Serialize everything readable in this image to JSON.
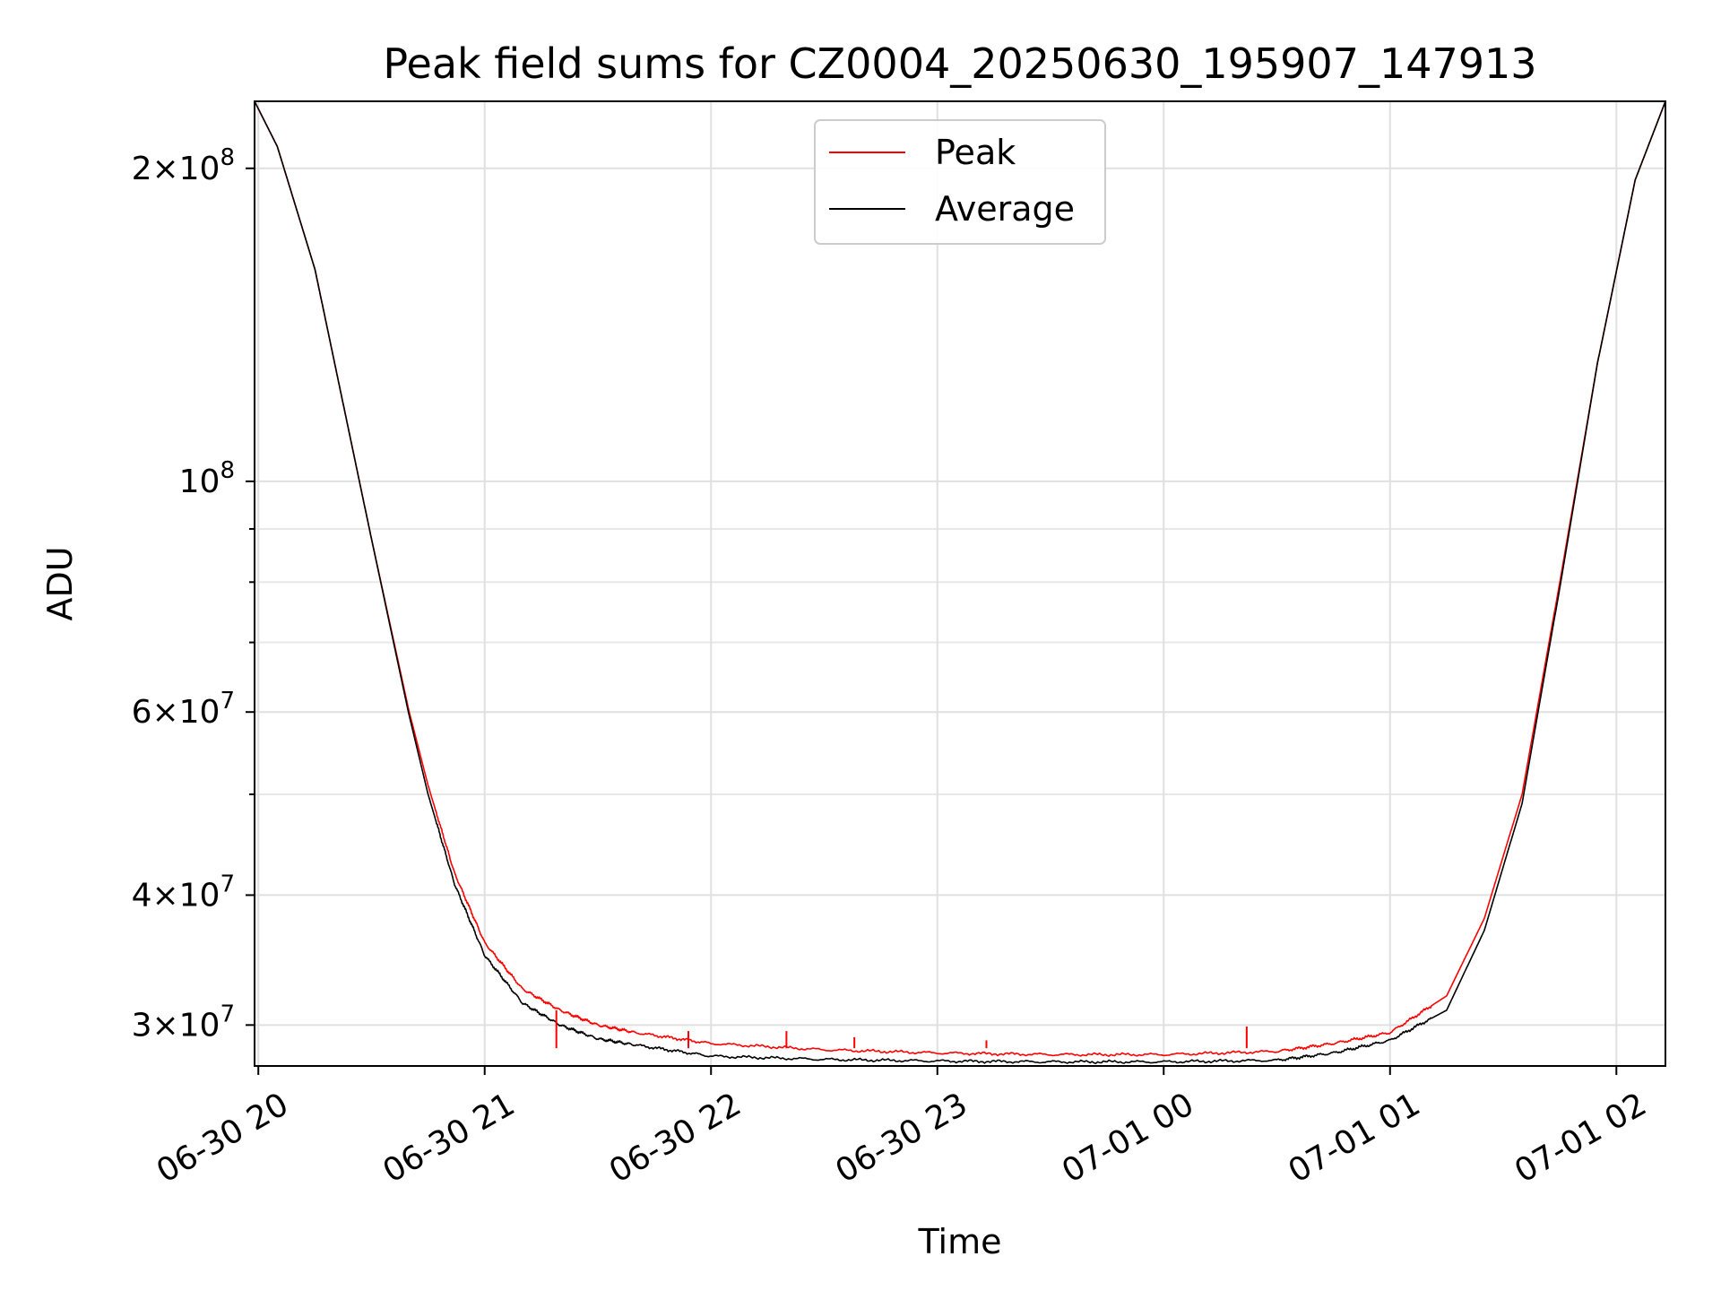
{
  "chart_data": {
    "type": "line",
    "title": "Peak field sums for CZ0004_20250630_195907_147913",
    "xlabel": "Time",
    "ylabel": "ADU",
    "yscale": "log",
    "grid": true,
    "legend_position": "top-center",
    "x_start": "2025-06-30 19:59",
    "x_end": "2025-07-01 02:13",
    "xlim": [
      "06-30 19:59",
      "07-01 02:13"
    ],
    "ylim": [
      27400000,
      232000000
    ],
    "x_ticks": [
      "06-30 20",
      "06-30 21",
      "06-30 22",
      "06-30 23",
      "07-01 00",
      "07-01 01",
      "07-01 02"
    ],
    "y_ticks": [
      {
        "value": 200000000,
        "base": "2×10",
        "exp": "8"
      },
      {
        "value": 100000000,
        "base": "10",
        "exp": "8"
      },
      {
        "value": 60000000,
        "base": "6×10",
        "exp": "7"
      },
      {
        "value": 40000000,
        "base": "4×10",
        "exp": "7"
      },
      {
        "value": 30000000,
        "base": "3×10",
        "exp": "7"
      }
    ],
    "y_minor_ticks": [
      90000000,
      80000000,
      70000000,
      50000000
    ],
    "x_hours": [
      "2025-06-30 19:59",
      "2025-06-30 20:05",
      "2025-06-30 20:15",
      "2025-06-30 20:30",
      "2025-06-30 20:40",
      "2025-06-30 20:45",
      "2025-06-30 20:52",
      "2025-06-30 21:00",
      "2025-06-30 21:10",
      "2025-06-30 21:20",
      "2025-06-30 21:30",
      "2025-06-30 21:40",
      "2025-06-30 22:00",
      "2025-06-30 22:30",
      "2025-06-30 23:00",
      "2025-06-30 23:30",
      "2025-07-01 00:00",
      "2025-07-01 00:30",
      "2025-07-01 00:45",
      "2025-07-01 01:00",
      "2025-07-01 01:15",
      "2025-07-01 01:25",
      "2025-07-01 01:35",
      "2025-07-01 01:45",
      "2025-07-01 01:55",
      "2025-07-01 02:05",
      "2025-07-01 02:13"
    ],
    "series": [
      {
        "name": "Peak",
        "color": "#ff0000",
        "values": [
          232000000,
          210000000,
          160000000,
          88000000,
          60000000,
          51000000,
          42000000,
          36000000,
          32500000,
          31000000,
          30000000,
          29500000,
          28800000,
          28400000,
          28200000,
          28100000,
          28100000,
          28300000,
          28800000,
          29500000,
          32000000,
          38000000,
          50000000,
          80000000,
          130000000,
          195000000,
          232000000
        ]
      },
      {
        "name": "Average",
        "color": "#000000",
        "values": [
          232000000,
          210000000,
          160000000,
          88000000,
          59500000,
          50000000,
          41000000,
          35000000,
          31500000,
          30000000,
          29100000,
          28700000,
          28000000,
          27800000,
          27700000,
          27650000,
          27650000,
          27750000,
          28200000,
          29000000,
          31000000,
          37000000,
          49000000,
          79000000,
          130000000,
          195000000,
          232000000
        ]
      }
    ],
    "spikes": [
      {
        "time": "2025-06-30 21:19",
        "value": 31000000
      },
      {
        "time": "2025-06-30 21:54",
        "value": 29600000
      },
      {
        "time": "2025-06-30 22:20",
        "value": 29600000
      },
      {
        "time": "2025-06-30 22:38",
        "value": 29200000
      },
      {
        "time": "2025-06-30 23:13",
        "value": 29000000
      },
      {
        "time": "2025-07-01 00:22",
        "value": 29900000
      }
    ]
  }
}
